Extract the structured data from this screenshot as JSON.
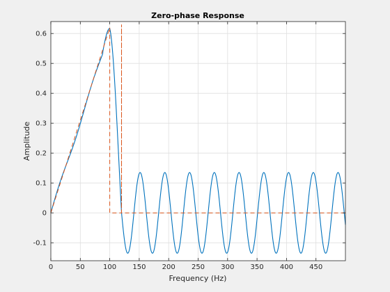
{
  "chart_data": {
    "type": "line",
    "title": "Zero-phase Response",
    "xlabel": "Frequency (Hz)",
    "ylabel": "Amplitude",
    "xlim": [
      0,
      500
    ],
    "ylim": [
      -0.16,
      0.64
    ],
    "xticks": [
      0,
      50,
      100,
      150,
      200,
      250,
      300,
      350,
      400,
      450
    ],
    "xtick_labels": [
      "0",
      "50",
      "100",
      "150",
      "200",
      "250",
      "300",
      "350",
      "400",
      "450"
    ],
    "yticks": [
      -0.1,
      0,
      0.1,
      0.2,
      0.3,
      0.4,
      0.5,
      0.6
    ],
    "ytick_labels": [
      "-0.1",
      "0",
      "0.1",
      "0.2",
      "0.3",
      "0.4",
      "0.5",
      "0.6"
    ],
    "grid": true,
    "series": [
      {
        "name": "",
        "style": "solid",
        "color": "#0072bd",
        "passband": [
          [
            0,
            0
          ],
          [
            100,
            0.617
          ]
        ],
        "transition_end": [
          120,
          0.0
        ],
        "ripple_amplitude": 0.135,
        "ripple_period_hz": 42
      },
      {
        "name": "",
        "style": "dashed",
        "color": "#d95319",
        "points": [
          [
            0,
            0
          ],
          [
            100,
            0.62
          ],
          [
            100,
            0
          ],
          [
            120,
            0
          ],
          [
            120,
            0.63
          ],
          [
            120,
            0
          ],
          [
            500,
            0
          ]
        ]
      }
    ]
  }
}
